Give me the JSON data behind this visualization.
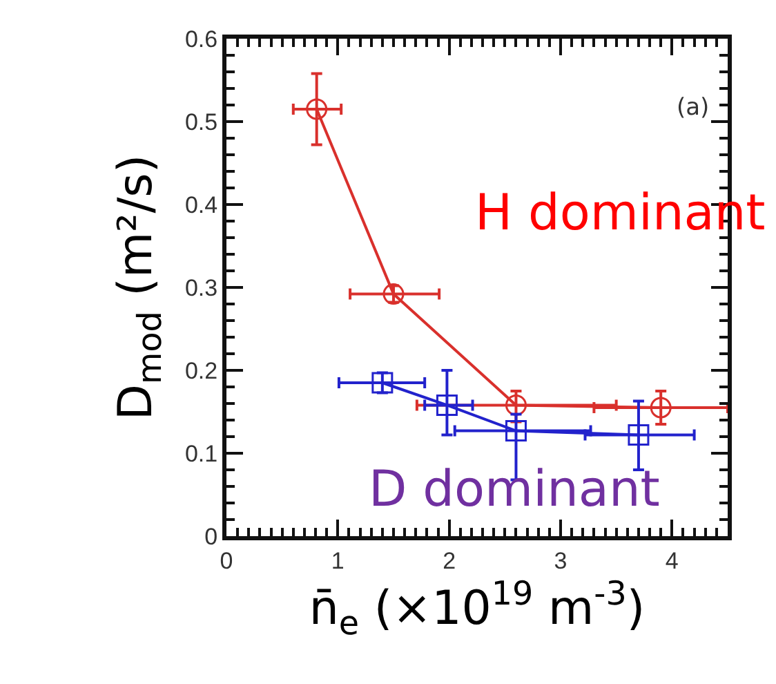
{
  "chart_data": {
    "type": "line",
    "xlabel": "n̄$_{e}$ (×10$^{19}$ m$^{-3}$)",
    "ylabel": "D$_{mod}$ (m²/s)",
    "xlim": [
      0,
      4.5
    ],
    "xticks": [
      0,
      1,
      2,
      3,
      4
    ],
    "ylim": [
      0,
      0.6
    ],
    "yticks": [
      0,
      0.1,
      0.2,
      0.3,
      0.4,
      0.5,
      0.6
    ],
    "grid": false,
    "line_style": "solid",
    "annotations": [
      "(a)",
      "H dominant",
      "D dominant"
    ],
    "series": [
      {
        "color": "#d9302c",
        "marker": "circle",
        "x": [
          0.81,
          1.5,
          2.6,
          3.9
        ],
        "values": [
          0.515,
          0.292,
          0.158,
          0.155
        ],
        "errors": [
          [
            0.472,
            0.558
          ],
          [
            0.282,
            0.302
          ],
          [
            0.138,
            0.175
          ],
          [
            0.135,
            0.175
          ]
        ],
        "xerrors": [
          [
            0.6,
            1.03
          ],
          [
            1.11,
            1.91
          ],
          [
            1.71,
            3.5
          ],
          [
            3.3,
            4.5
          ]
        ]
      },
      {
        "color": "#2222cc",
        "marker": "square",
        "x": [
          1.4,
          1.98,
          2.6,
          3.7
        ],
        "values": [
          0.185,
          0.158,
          0.127,
          0.122
        ],
        "errors": [
          [
            0.173,
            0.197
          ],
          [
            0.122,
            0.2
          ],
          [
            0.068,
            0.147
          ],
          [
            0.08,
            0.163
          ]
        ],
        "xerrors": [
          [
            1.01,
            1.78
          ],
          [
            1.78,
            2.21
          ],
          [
            2.05,
            3.27
          ],
          [
            3.22,
            4.2
          ]
        ]
      }
    ]
  }
}
